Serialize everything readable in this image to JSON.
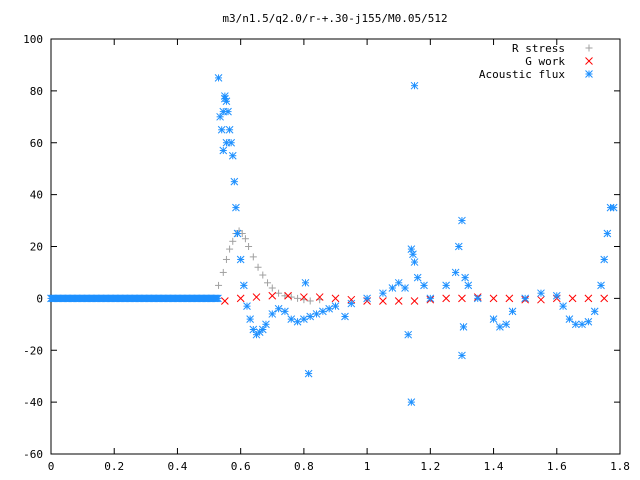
{
  "chart_data": {
    "type": "scatter",
    "title": "m3/n1.5/q2.0/r-+.30-j155/M0.05/512",
    "xlabel": "",
    "ylabel": "",
    "xlim": [
      0,
      1.8
    ],
    "ylim": [
      -60,
      100
    ],
    "x_ticks": [
      0,
      0.2,
      0.4,
      0.6,
      0.8,
      1,
      1.2,
      1.4,
      1.6,
      1.8
    ],
    "x_tick_labels": [
      "0",
      "0.2",
      "0.4",
      "0.6",
      "0.8",
      "1",
      "1.2",
      "1.4",
      "1.6",
      "1.8"
    ],
    "y_ticks": [
      -60,
      -40,
      -20,
      0,
      20,
      40,
      60,
      80,
      100
    ],
    "y_tick_labels": [
      "-60",
      "-40",
      "-20",
      "0",
      "20",
      "40",
      "60",
      "80",
      "100"
    ],
    "grid": false,
    "legend_position": "top-right",
    "series": [
      {
        "name": "R stress",
        "marker": "plus",
        "color": "#a0a0a0",
        "x": [
          0.53,
          0.545,
          0.555,
          0.565,
          0.575,
          0.585,
          0.595,
          0.605,
          0.615,
          0.625,
          0.64,
          0.655,
          0.67,
          0.685,
          0.7,
          0.72,
          0.74,
          0.76,
          0.78,
          0.8,
          0.82,
          0.85
        ],
        "y": [
          5,
          10,
          15,
          19,
          22,
          25,
          26,
          25,
          23,
          20,
          16,
          12,
          9,
          6,
          4,
          2,
          1,
          0.5,
          0,
          -0.5,
          -1,
          -0.5
        ]
      },
      {
        "name": "G work",
        "marker": "cross",
        "color": "#ff0000",
        "x": [
          0.55,
          0.6,
          0.65,
          0.7,
          0.75,
          0.8,
          0.85,
          0.9,
          0.95,
          1.0,
          1.05,
          1.1,
          1.15,
          1.2,
          1.25,
          1.3,
          1.35,
          1.4,
          1.45,
          1.5,
          1.55,
          1.6,
          1.65,
          1.7,
          1.75
        ],
        "y": [
          -1,
          0,
          0.5,
          1,
          1,
          0.5,
          0.5,
          0,
          -0.5,
          -1,
          -1,
          -1,
          -1,
          -0.5,
          0,
          0,
          0.5,
          0,
          0,
          -0.5,
          -0.5,
          0,
          0,
          0,
          0
        ]
      },
      {
        "name": "Acoustic flux",
        "marker": "star",
        "color": "#1e90ff",
        "x": [
          0.53,
          0.535,
          0.54,
          0.545,
          0.55,
          0.555,
          0.56,
          0.565,
          0.57,
          0.575,
          0.58,
          0.585,
          0.59,
          0.6,
          0.61,
          0.62,
          0.63,
          0.64,
          0.65,
          0.66,
          0.67,
          0.68,
          0.7,
          0.72,
          0.74,
          0.76,
          0.78,
          0.8,
          0.82,
          0.84,
          0.86,
          0.88,
          0.9,
          0.95,
          1.0,
          1.05,
          1.08,
          1.1,
          1.12,
          1.13,
          1.14,
          1.145,
          1.15,
          1.16,
          1.18,
          1.2,
          1.25,
          1.28,
          1.29,
          1.3,
          1.31,
          1.32,
          1.35,
          1.4,
          1.42,
          1.44,
          1.46,
          1.5,
          1.55,
          1.6,
          1.62,
          1.64,
          1.66,
          1.68,
          1.7,
          1.72,
          1.74,
          1.75,
          1.76,
          1.77,
          1.78,
          0.545,
          0.55,
          0.555,
          0.815,
          0.805,
          0.93,
          1.14,
          1.15,
          1.3,
          1.305
        ],
        "y": [
          85,
          70,
          65,
          72,
          78,
          76,
          72,
          65,
          60,
          55,
          45,
          35,
          25,
          15,
          5,
          -3,
          -8,
          -12,
          -14,
          -13,
          -12,
          -10,
          -6,
          -4,
          -5,
          -8,
          -9,
          -8,
          -7,
          -6,
          -5,
          -4,
          -3,
          -2,
          0,
          2,
          4,
          6,
          4,
          -14,
          19,
          17,
          14,
          8,
          5,
          0,
          5,
          10,
          20,
          30,
          8,
          5,
          0,
          -8,
          -11,
          -10,
          -5,
          0,
          2,
          1,
          -3,
          -8,
          -10,
          -10,
          -9,
          -5,
          5,
          15,
          25,
          35,
          35,
          57,
          77,
          60,
          -29,
          6,
          -7,
          -40,
          82,
          -22,
          -11
        ]
      }
    ]
  }
}
